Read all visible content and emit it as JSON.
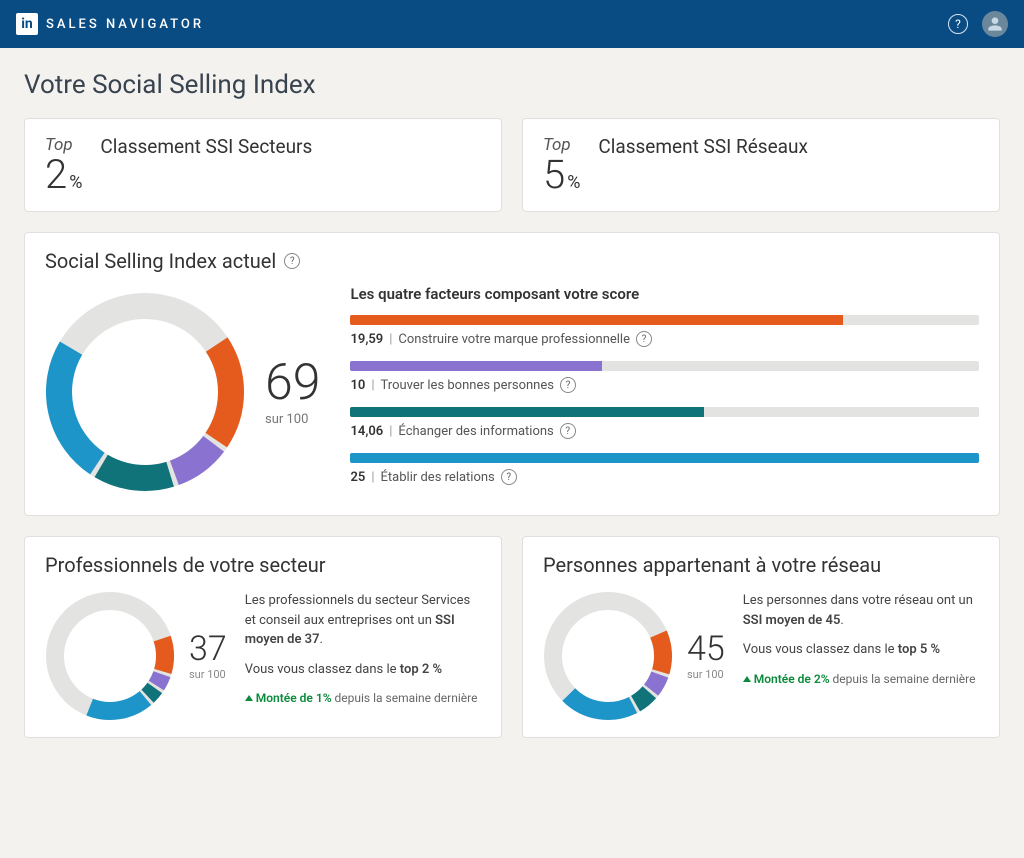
{
  "brand": {
    "logo_text": "in",
    "product": "SALES NAVIGATOR"
  },
  "colors": {
    "topbar_bg": "#094c84",
    "page_bg": "#f3f2ef",
    "card_border": "#e0dfdd",
    "donut_track": "#e3e3e1",
    "factor_orange": "#e55b1e",
    "factor_purple": "#8a72d0",
    "factor_teal": "#10737a",
    "factor_blue": "#1e95c8",
    "trend_green": "#0a8a3a"
  },
  "page": {
    "title": "Votre Social Selling Index"
  },
  "top_ranks": {
    "sector": {
      "top_label": "Top",
      "value": 2,
      "unit": "%",
      "heading": "Classement SSI Secteurs"
    },
    "network": {
      "top_label": "Top",
      "value": 5,
      "unit": "%",
      "heading": "Classement SSI Réseaux"
    }
  },
  "ssi_current": {
    "title": "Social Selling Index actuel",
    "score": 69,
    "outof_label": "sur 100",
    "donut": {
      "size": 200,
      "stroke": 26,
      "gap_deg": 3,
      "segments": [
        {
          "value": 19.59,
          "color": "#e55b1e"
        },
        {
          "value": 10,
          "color": "#8a72d0"
        },
        {
          "value": 14.06,
          "color": "#10737a"
        },
        {
          "value": 25,
          "color": "#1e95c8"
        }
      ],
      "max": 100,
      "track_color": "#e3e3e1",
      "start_angle_deg": -35
    },
    "factors_title": "Les quatre facteurs composant votre score",
    "factors": [
      {
        "value": "19,59",
        "pct": 78.36,
        "label": "Construire votre marque professionnelle",
        "color": "#e55b1e"
      },
      {
        "value": "10",
        "pct": 40.0,
        "label": "Trouver les bonnes personnes",
        "color": "#8a72d0"
      },
      {
        "value": "14,06",
        "pct": 56.24,
        "label": "Échanger des informations",
        "color": "#10737a"
      },
      {
        "value": "25",
        "pct": 100.0,
        "label": "Établir des relations",
        "color": "#1e95c8"
      }
    ]
  },
  "sector_panel": {
    "title": "Professionnels de votre secteur",
    "score": 37,
    "outof_label": "sur 100",
    "desc_before_bold": "Les professionnels du secteur Services et conseil aux entreprises ont un ",
    "desc_bold": "SSI moyen de 37",
    "desc_after_bold": ".",
    "rank_before_bold": "Vous vous classez dans le ",
    "rank_bold": "top 2 %",
    "trend_up_text": "Montée de 1%",
    "trend_rest": " depuis la semaine dernière",
    "donut": {
      "size": 130,
      "stroke": 18,
      "gap_deg": 3,
      "segments": [
        {
          "value": 10.5,
          "color": "#e55b1e"
        },
        {
          "value": 4.5,
          "color": "#8a72d0"
        },
        {
          "value": 4,
          "color": "#10737a"
        },
        {
          "value": 18,
          "color": "#1e95c8"
        }
      ],
      "max": 100,
      "track_color": "#e3e3e1",
      "start_angle_deg": -20
    }
  },
  "network_panel": {
    "title": "Personnes appartenant à votre réseau",
    "score": 45,
    "outof_label": "sur 100",
    "desc_before_bold": "Les personnes dans votre réseau ont un ",
    "desc_bold": "SSI moyen de 45",
    "desc_after_bold": ".",
    "rank_before_bold": "Vous vous classez dans le ",
    "rank_bold": "top 5 %",
    "trend_up_text": "Montée de 2%",
    "trend_rest": " depuis la semaine dernière",
    "donut": {
      "size": 130,
      "stroke": 18,
      "gap_deg": 3,
      "segments": [
        {
          "value": 12,
          "color": "#e55b1e"
        },
        {
          "value": 6,
          "color": "#8a72d0"
        },
        {
          "value": 6,
          "color": "#10737a"
        },
        {
          "value": 21,
          "color": "#1e95c8"
        }
      ],
      "max": 100,
      "track_color": "#e3e3e1",
      "start_angle_deg": -25
    }
  }
}
